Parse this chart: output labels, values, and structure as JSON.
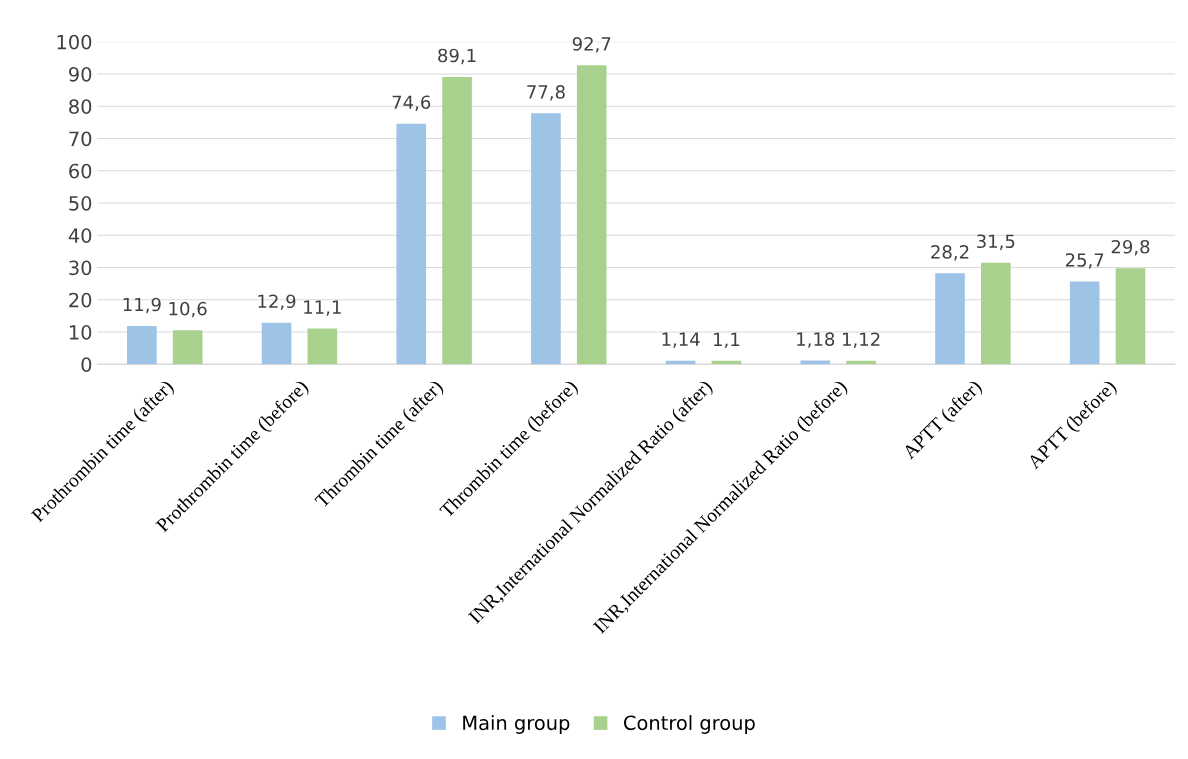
{
  "chart_data": {
    "type": "bar",
    "categories": [
      "Prothrombin time (after)",
      "Prothrombin time (before)",
      "Thrombin time (after)",
      "Thrombin time (before)",
      "INR,International Normalized Ratio (after)",
      "INR,International Normalized Ratio (before)",
      "APTT (after)",
      "APTT (before)"
    ],
    "series": [
      {
        "name": "Main group",
        "color": "#9dc3e6",
        "values": [
          11.9,
          12.9,
          74.6,
          77.8,
          1.14,
          1.18,
          28.2,
          25.7
        ],
        "value_labels": [
          "11,9",
          "12,9",
          "74,6",
          "77,8",
          "1,14",
          "1,18",
          "28,2",
          "25,7"
        ]
      },
      {
        "name": "Control group",
        "color": "#a9d18e",
        "values": [
          10.6,
          11.1,
          89.1,
          92.7,
          1.1,
          1.12,
          31.5,
          29.8
        ],
        "value_labels": [
          "10,6",
          "11,1",
          "89,1",
          "92,7",
          "1,1",
          "1,12",
          "31,5",
          "29,8"
        ]
      }
    ],
    "ylim": [
      0,
      100
    ],
    "yticks": [
      0,
      10,
      20,
      30,
      40,
      50,
      60,
      70,
      80,
      90,
      100
    ],
    "grid": "y",
    "legend": "bottom"
  }
}
